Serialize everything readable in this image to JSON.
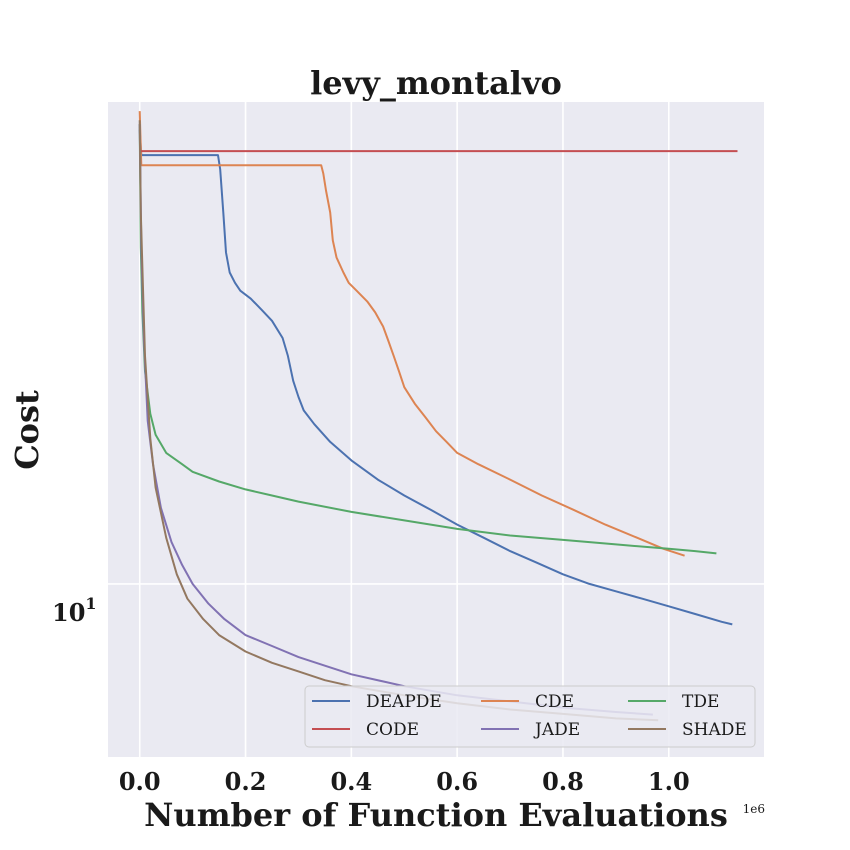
{
  "chart_data": {
    "type": "line",
    "title": "levy_montalvo",
    "xlabel": "Number of Function Evaluations",
    "ylabel": "Cost",
    "x_offset_label": "1e6",
    "xscale": "linear",
    "yscale": "log",
    "xlim": [
      -0.06,
      1.18
    ],
    "ylim": [
      7.0,
      27.0
    ],
    "xticks": [
      0.0,
      0.2,
      0.4,
      0.6,
      0.8,
      1.0
    ],
    "xtick_labels": [
      "0.0",
      "0.2",
      "0.4",
      "0.6",
      "0.8",
      "1.0"
    ],
    "ytick_base": "10",
    "ytick_exp": "1",
    "ytick_value": 10,
    "grid": true,
    "background": "#EAEAF2",
    "legend_location": "lower right",
    "legend_columns": 3,
    "series": [
      {
        "name": "DEAPDE",
        "color": "#4C72B0",
        "points": [
          [
            0.0,
            25.5
          ],
          [
            0.003,
            24.2
          ],
          [
            0.148,
            24.2
          ],
          [
            0.152,
            23.5
          ],
          [
            0.158,
            21.5
          ],
          [
            0.163,
            19.8
          ],
          [
            0.17,
            19.0
          ],
          [
            0.18,
            18.6
          ],
          [
            0.19,
            18.3
          ],
          [
            0.21,
            18.0
          ],
          [
            0.23,
            17.6
          ],
          [
            0.25,
            17.2
          ],
          [
            0.27,
            16.6
          ],
          [
            0.28,
            16.0
          ],
          [
            0.29,
            15.2
          ],
          [
            0.3,
            14.7
          ],
          [
            0.31,
            14.3
          ],
          [
            0.33,
            13.9
          ],
          [
            0.36,
            13.4
          ],
          [
            0.4,
            12.9
          ],
          [
            0.45,
            12.4
          ],
          [
            0.5,
            12.0
          ],
          [
            0.55,
            11.65
          ],
          [
            0.6,
            11.3
          ],
          [
            0.65,
            11.0
          ],
          [
            0.7,
            10.7
          ],
          [
            0.75,
            10.45
          ],
          [
            0.8,
            10.2
          ],
          [
            0.85,
            10.0
          ],
          [
            0.9,
            9.85
          ],
          [
            0.95,
            9.7
          ],
          [
            1.0,
            9.55
          ],
          [
            1.05,
            9.4
          ],
          [
            1.1,
            9.25
          ],
          [
            1.12,
            9.2
          ]
        ]
      },
      {
        "name": "CDE",
        "color": "#DD8452",
        "points": [
          [
            0.0,
            26.5
          ],
          [
            0.003,
            23.7
          ],
          [
            0.343,
            23.7
          ],
          [
            0.347,
            23.3
          ],
          [
            0.352,
            22.5
          ],
          [
            0.36,
            21.5
          ],
          [
            0.365,
            20.3
          ],
          [
            0.372,
            19.6
          ],
          [
            0.385,
            19.0
          ],
          [
            0.395,
            18.6
          ],
          [
            0.41,
            18.3
          ],
          [
            0.43,
            17.9
          ],
          [
            0.445,
            17.5
          ],
          [
            0.46,
            17.0
          ],
          [
            0.47,
            16.5
          ],
          [
            0.48,
            16.0
          ],
          [
            0.49,
            15.5
          ],
          [
            0.5,
            15.0
          ],
          [
            0.52,
            14.5
          ],
          [
            0.54,
            14.1
          ],
          [
            0.56,
            13.7
          ],
          [
            0.58,
            13.4
          ],
          [
            0.6,
            13.1
          ],
          [
            0.64,
            12.8
          ],
          [
            0.7,
            12.4
          ],
          [
            0.76,
            12.0
          ],
          [
            0.82,
            11.65
          ],
          [
            0.88,
            11.3
          ],
          [
            0.94,
            11.0
          ],
          [
            0.99,
            10.75
          ],
          [
            1.03,
            10.6
          ]
        ]
      },
      {
        "name": "TDE",
        "color": "#55A868",
        "points": [
          [
            0.0,
            25.8
          ],
          [
            0.002,
            20.0
          ],
          [
            0.005,
            17.5
          ],
          [
            0.01,
            15.5
          ],
          [
            0.02,
            14.2
          ],
          [
            0.03,
            13.6
          ],
          [
            0.05,
            13.1
          ],
          [
            0.08,
            12.8
          ],
          [
            0.1,
            12.6
          ],
          [
            0.15,
            12.35
          ],
          [
            0.2,
            12.15
          ],
          [
            0.25,
            12.0
          ],
          [
            0.3,
            11.85
          ],
          [
            0.4,
            11.6
          ],
          [
            0.5,
            11.4
          ],
          [
            0.6,
            11.2
          ],
          [
            0.7,
            11.05
          ],
          [
            0.8,
            10.95
          ],
          [
            0.9,
            10.85
          ],
          [
            1.0,
            10.75
          ],
          [
            1.05,
            10.7
          ],
          [
            1.09,
            10.65
          ]
        ]
      },
      {
        "name": "CODE",
        "color": "#C44E52",
        "points": [
          [
            0.0,
            24.4
          ],
          [
            1.13,
            24.4
          ]
        ]
      },
      {
        "name": "JADE",
        "color": "#8172B3",
        "points": [
          [
            0.0,
            25.8
          ],
          [
            0.003,
            20.0
          ],
          [
            0.008,
            16.5
          ],
          [
            0.015,
            14.0
          ],
          [
            0.025,
            12.8
          ],
          [
            0.04,
            11.7
          ],
          [
            0.06,
            10.9
          ],
          [
            0.08,
            10.4
          ],
          [
            0.1,
            10.0
          ],
          [
            0.13,
            9.6
          ],
          [
            0.16,
            9.3
          ],
          [
            0.2,
            9.0
          ],
          [
            0.25,
            8.8
          ],
          [
            0.3,
            8.6
          ],
          [
            0.35,
            8.45
          ],
          [
            0.4,
            8.3
          ],
          [
            0.5,
            8.1
          ],
          [
            0.6,
            7.95
          ],
          [
            0.7,
            7.85
          ],
          [
            0.8,
            7.75
          ],
          [
            0.9,
            7.68
          ],
          [
            0.97,
            7.64
          ]
        ]
      },
      {
        "name": "SHADE",
        "color": "#937860",
        "points": [
          [
            0.0,
            26.0
          ],
          [
            0.002,
            21.5
          ],
          [
            0.006,
            18.5
          ],
          [
            0.01,
            16.0
          ],
          [
            0.02,
            13.5
          ],
          [
            0.03,
            12.2
          ],
          [
            0.05,
            11.0
          ],
          [
            0.07,
            10.2
          ],
          [
            0.09,
            9.7
          ],
          [
            0.12,
            9.3
          ],
          [
            0.15,
            9.0
          ],
          [
            0.2,
            8.7
          ],
          [
            0.25,
            8.5
          ],
          [
            0.3,
            8.35
          ],
          [
            0.35,
            8.2
          ],
          [
            0.4,
            8.1
          ],
          [
            0.5,
            7.95
          ],
          [
            0.6,
            7.82
          ],
          [
            0.7,
            7.72
          ],
          [
            0.8,
            7.65
          ],
          [
            0.9,
            7.58
          ],
          [
            0.98,
            7.55
          ]
        ]
      }
    ]
  }
}
